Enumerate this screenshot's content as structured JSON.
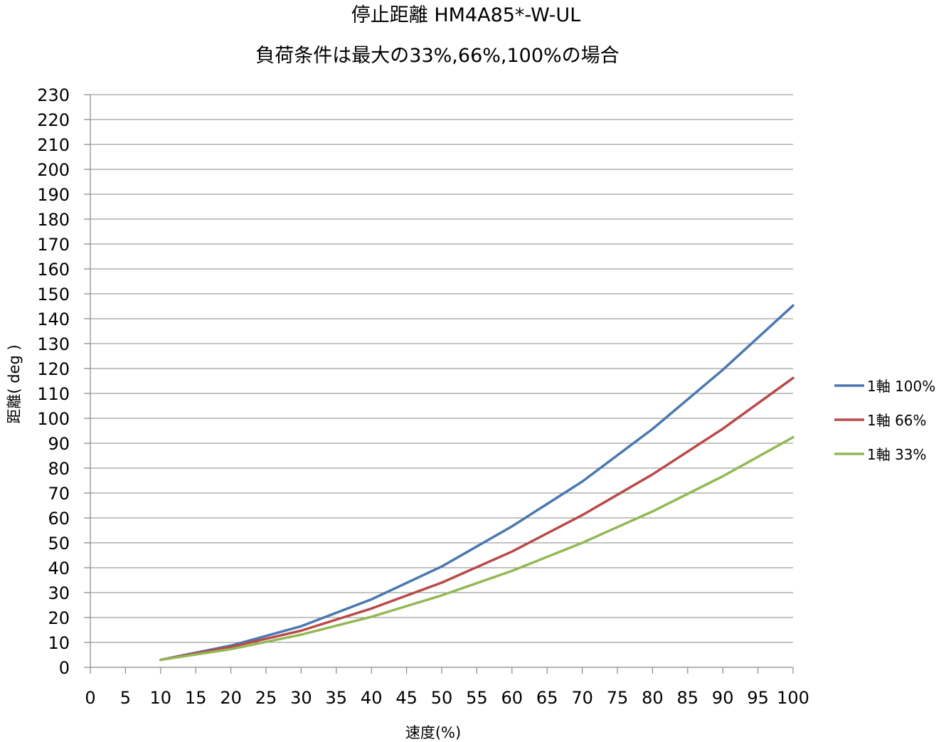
{
  "chart_data": {
    "type": "line",
    "title": "停止距離 HM4A85*-W-UL",
    "subtitle": "負荷条件は最大の33%,66%,100%の場合",
    "xlabel": "速度(%)",
    "ylabel": "距離( deg )",
    "x": [
      10,
      20,
      30,
      40,
      50,
      60,
      70,
      80,
      90,
      100
    ],
    "xlim": [
      0,
      100
    ],
    "ylim": [
      0,
      230
    ],
    "xticks": [
      "0",
      "5",
      "10",
      "15",
      "20",
      "25",
      "30",
      "35",
      "40",
      "45",
      "50",
      "55",
      "60",
      "65",
      "70",
      "75",
      "80",
      "85",
      "90",
      "95",
      "100"
    ],
    "yticks": [
      "0",
      "10",
      "20",
      "30",
      "40",
      "50",
      "60",
      "70",
      "80",
      "90",
      "100",
      "110",
      "120",
      "130",
      "140",
      "150",
      "160",
      "170",
      "180",
      "190",
      "200",
      "210",
      "220",
      "230"
    ],
    "grid": true,
    "legend_position": "right",
    "series": [
      {
        "name": "1軸 100%",
        "color": "#4a78b0",
        "values": [
          3,
          8.7,
          16.5,
          27.3,
          40.5,
          56.6,
          74.6,
          95.7,
          119.5,
          145.3
        ]
      },
      {
        "name": "1軸 66%",
        "color": "#b94a48",
        "values": [
          3,
          8.2,
          14.7,
          23.6,
          34,
          46.5,
          61.1,
          77.5,
          95.8,
          116.2
        ]
      },
      {
        "name": "1軸 33%",
        "color": "#93b855",
        "values": [
          3,
          7.3,
          13.1,
          20.3,
          28.9,
          38.7,
          50,
          62.6,
          76.7,
          92.4
        ]
      }
    ]
  }
}
